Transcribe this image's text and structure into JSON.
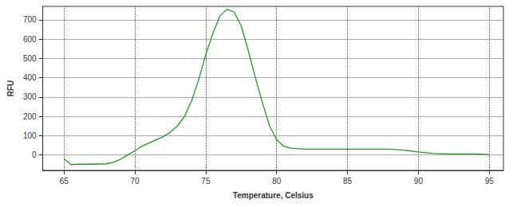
{
  "chart_data": {
    "type": "line",
    "x_label": "Temperature, Celsius",
    "y_label": "RFU",
    "x": [
      65,
      65.5,
      66,
      67,
      68,
      68.5,
      69,
      69.5,
      70,
      70.5,
      71,
      71.5,
      72,
      72.5,
      73,
      73.5,
      74,
      74.5,
      75,
      75.5,
      76,
      76.5,
      77,
      77.5,
      78,
      78.5,
      79,
      79.5,
      80,
      80.5,
      81,
      82,
      85,
      88,
      89,
      90,
      91,
      92,
      94,
      95
    ],
    "values": [
      -20,
      -50,
      -48,
      -48,
      -46,
      -38,
      -22,
      0,
      22,
      45,
      62,
      78,
      95,
      118,
      150,
      200,
      280,
      390,
      520,
      630,
      720,
      755,
      740,
      670,
      540,
      400,
      270,
      150,
      80,
      45,
      35,
      30,
      30,
      30,
      25,
      15,
      8,
      5,
      5,
      2
    ],
    "color": "#1e9a1e",
    "xlim": [
      63.5,
      96
    ],
    "xticks": [
      65,
      70,
      75,
      80,
      85,
      90,
      95
    ],
    "ylim": [
      -80,
      770
    ],
    "yticks": [
      0,
      100,
      200,
      300,
      400,
      500,
      600,
      700
    ],
    "grid": true
  }
}
